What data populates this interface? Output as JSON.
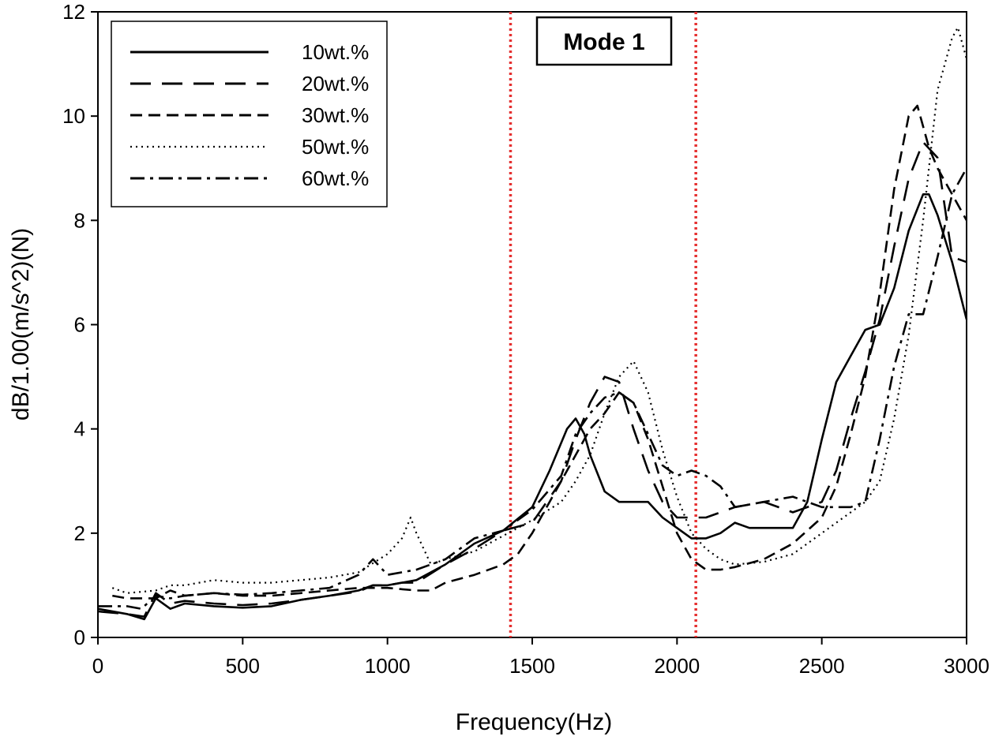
{
  "chart_data": {
    "type": "line",
    "title": "",
    "xlabel": "Frequency(Hz)",
    "ylabel": "dB/1.00(m/s^2)(N)",
    "xlim": [
      0,
      3000
    ],
    "ylim": [
      0,
      12
    ],
    "xticks": [
      0,
      500,
      1000,
      1500,
      2000,
      2500,
      3000
    ],
    "yticks": [
      0,
      2,
      4,
      6,
      8,
      10,
      12
    ],
    "grid": false,
    "legend_position": "top-left",
    "annotation": "Mode 1",
    "reference_lines": {
      "x": [
        1425,
        2065
      ],
      "color": "#e53030",
      "style": "dotted"
    },
    "series": [
      {
        "name": "10wt.%",
        "style": "solid",
        "x": [
          0,
          100,
          160,
          200,
          250,
          300,
          400,
          500,
          600,
          700,
          800,
          900,
          950,
          1000,
          1100,
          1200,
          1300,
          1400,
          1500,
          1560,
          1620,
          1650,
          1680,
          1700,
          1750,
          1800,
          1850,
          1900,
          1950,
          2000,
          2050,
          2100,
          2150,
          2200,
          2250,
          2300,
          2350,
          2400,
          2450,
          2500,
          2550,
          2600,
          2650,
          2700,
          2750,
          2800,
          2850,
          2870,
          2900,
          2950,
          3000
        ],
        "y": [
          0.55,
          0.45,
          0.35,
          0.75,
          0.55,
          0.65,
          0.6,
          0.57,
          0.6,
          0.72,
          0.8,
          0.9,
          1.0,
          1.0,
          1.1,
          1.4,
          1.8,
          2.05,
          2.5,
          3.2,
          4.0,
          4.2,
          3.9,
          3.5,
          2.8,
          2.6,
          2.6,
          2.6,
          2.3,
          2.1,
          1.9,
          1.9,
          2.0,
          2.2,
          2.1,
          2.1,
          2.1,
          2.1,
          2.6,
          3.8,
          4.9,
          5.4,
          5.9,
          6.0,
          6.7,
          7.8,
          8.5,
          8.5,
          8.1,
          7.2,
          6.1
        ]
      },
      {
        "name": "20wt.%",
        "style": "long-dash",
        "x": [
          0,
          100,
          160,
          200,
          250,
          300,
          400,
          500,
          600,
          700,
          800,
          900,
          950,
          1000,
          1050,
          1100,
          1200,
          1300,
          1400,
          1500,
          1550,
          1600,
          1650,
          1700,
          1750,
          1800,
          1850,
          1900,
          1950,
          2000,
          2050,
          2100,
          2200,
          2300,
          2400,
          2500,
          2550,
          2600,
          2650,
          2700,
          2750,
          2800,
          2850,
          2900,
          2950,
          3000
        ],
        "y": [
          0.5,
          0.45,
          0.4,
          0.85,
          0.65,
          0.7,
          0.65,
          0.62,
          0.65,
          0.72,
          0.8,
          0.88,
          1.0,
          1.0,
          1.05,
          1.05,
          1.4,
          1.7,
          2.05,
          2.2,
          2.6,
          3.0,
          3.8,
          4.5,
          5.0,
          4.9,
          4.0,
          3.2,
          2.6,
          2.3,
          2.3,
          2.3,
          2.5,
          2.6,
          2.4,
          2.6,
          3.2,
          4.2,
          5.1,
          6.1,
          7.5,
          8.8,
          9.5,
          9.2,
          7.3,
          7.2
        ]
      },
      {
        "name": "30wt.%",
        "style": "short-dash",
        "x": [
          50,
          100,
          200,
          250,
          300,
          400,
          500,
          600,
          700,
          800,
          900,
          1000,
          1100,
          1150,
          1200,
          1300,
          1400,
          1450,
          1500,
          1550,
          1600,
          1650,
          1700,
          1750,
          1800,
          1850,
          1900,
          1950,
          2000,
          2050,
          2100,
          2150,
          2200,
          2300,
          2400,
          2500,
          2550,
          2600,
          2650,
          2700,
          2750,
          2800,
          2830,
          2850,
          2870,
          2900,
          2950,
          3000
        ],
        "y": [
          0.8,
          0.75,
          0.75,
          0.9,
          0.8,
          0.85,
          0.8,
          0.8,
          0.85,
          0.9,
          0.95,
          0.95,
          0.9,
          0.9,
          1.05,
          1.2,
          1.4,
          1.6,
          2.0,
          2.5,
          3.0,
          3.5,
          4.0,
          4.3,
          4.7,
          4.5,
          3.8,
          2.9,
          2.0,
          1.5,
          1.3,
          1.3,
          1.35,
          1.5,
          1.8,
          2.3,
          2.9,
          3.9,
          5.0,
          6.6,
          8.6,
          10.0,
          10.2,
          9.8,
          9.4,
          9.0,
          8.5,
          8.0
        ]
      },
      {
        "name": "50wt.%",
        "style": "dotted",
        "x": [
          50,
          100,
          200,
          250,
          300,
          400,
          500,
          600,
          700,
          800,
          900,
          1000,
          1050,
          1080,
          1100,
          1150,
          1200,
          1300,
          1400,
          1500,
          1600,
          1650,
          1700,
          1750,
          1800,
          1850,
          1900,
          1950,
          2000,
          2050,
          2100,
          2150,
          2200,
          2300,
          2400,
          2500,
          2600,
          2650,
          2700,
          2750,
          2800,
          2850,
          2900,
          2950,
          2970,
          3000
        ],
        "y": [
          0.95,
          0.85,
          0.9,
          1.0,
          1.0,
          1.1,
          1.05,
          1.05,
          1.1,
          1.15,
          1.25,
          1.6,
          1.9,
          2.3,
          2.0,
          1.4,
          1.5,
          1.65,
          1.95,
          2.25,
          2.6,
          3.0,
          3.5,
          4.3,
          5.0,
          5.3,
          4.7,
          3.6,
          2.7,
          2.0,
          1.7,
          1.5,
          1.4,
          1.45,
          1.6,
          2.0,
          2.4,
          2.6,
          3.0,
          4.2,
          5.8,
          8.0,
          10.5,
          11.5,
          11.7,
          11.1
        ]
      },
      {
        "name": "60wt.%",
        "style": "dash-dot",
        "x": [
          0,
          100,
          150,
          200,
          250,
          300,
          400,
          500,
          600,
          700,
          800,
          900,
          950,
          1000,
          1100,
          1200,
          1300,
          1400,
          1500,
          1600,
          1650,
          1700,
          1750,
          1800,
          1850,
          1900,
          1950,
          2000,
          2050,
          2100,
          2150,
          2200,
          2300,
          2400,
          2450,
          2500,
          2550,
          2600,
          2650,
          2700,
          2750,
          2800,
          2850,
          2900,
          2950,
          3000
        ],
        "y": [
          0.6,
          0.6,
          0.55,
          0.8,
          0.75,
          0.8,
          0.85,
          0.82,
          0.85,
          0.9,
          0.95,
          1.2,
          1.5,
          1.2,
          1.3,
          1.5,
          1.9,
          2.05,
          2.45,
          3.1,
          3.9,
          4.3,
          4.6,
          4.7,
          4.5,
          3.9,
          3.3,
          3.1,
          3.2,
          3.1,
          2.9,
          2.5,
          2.6,
          2.7,
          2.6,
          2.5,
          2.5,
          2.5,
          2.6,
          3.8,
          5.2,
          6.2,
          6.2,
          7.3,
          8.5,
          9.0
        ]
      }
    ]
  }
}
